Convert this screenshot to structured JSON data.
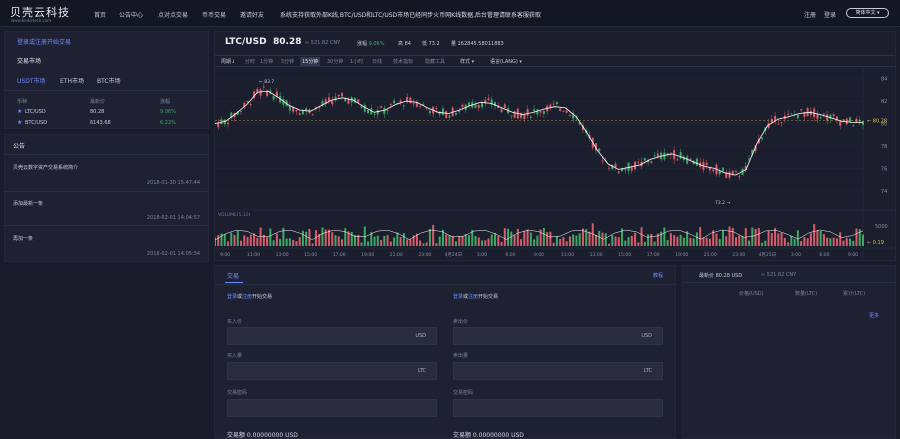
{
  "brand": {
    "title": "贝壳云科技",
    "subtitle": "www.beiketech.com"
  },
  "nav": {
    "items": [
      "首页",
      "公告中心",
      "点对点交易",
      "币币交易",
      "邀请好友"
    ],
    "notice": "系统支持获取外部K线,BTC/USD和LTC/USD市场已经同步火币网K线数据,后台管理请联系客服获取"
  },
  "user": {
    "register": "注册",
    "login": "登录",
    "language": "简体中文"
  },
  "market": {
    "login_prompt": "登录或注册开始交易",
    "section_title": "交易市场",
    "tabs": [
      "USDT市场",
      "ETH市场",
      "BTC市场"
    ],
    "columns": [
      "币种",
      "最新价",
      "涨幅"
    ],
    "rows": [
      {
        "symbol": "LTC/USD",
        "price": "80.28",
        "change": "9.06%"
      },
      {
        "symbol": "BTC/USD",
        "price": "6143.68",
        "change": "6.22%"
      }
    ]
  },
  "announcements": {
    "title": "公告",
    "items": [
      {
        "title": "贝壳云数字资产交易系统简介",
        "date": "2018-01-30 15:47:44"
      },
      {
        "title": "添加最新一条",
        "date": "2018-02-01 14:04:57"
      },
      {
        "title": "再加一条",
        "date": "2018-02-01 14:05:34"
      }
    ]
  },
  "ticker": {
    "pair": "LTC/USD",
    "price": "80.28",
    "cny": "≈ 521.82 CNY",
    "change_label": "涨幅",
    "change": "9.06%",
    "high_label": "高",
    "high": "84",
    "low_label": "低",
    "low": "73.2",
    "volume_label": "量",
    "volume": "162845.58011883"
  },
  "chart_toolbar": {
    "items": [
      "周期↓",
      "分时",
      "1分钟",
      "5分钟",
      "15分钟",
      "30分钟",
      "1小时",
      "日线",
      "技术指标",
      "隐藏工具",
      "样式 ▾",
      "语言(LANG) ▾"
    ],
    "active": "15分钟"
  },
  "chart_data": {
    "type": "line",
    "pair": "LTC/USD",
    "y_ticks": [
      74,
      76,
      78,
      80,
      82,
      84
    ],
    "ylim": [
      73,
      84.6
    ],
    "last_price_label": "80.28",
    "high_marker": "83.7",
    "low_marker": "73.2",
    "volume_title": "VOLUME(5,10)",
    "volume_ticks": [
      "5000"
    ],
    "volume_last_label": "0.19",
    "x_ticks": [
      "9:00",
      "11:00",
      "13:00",
      "15:00",
      "17:00",
      "19:00",
      "21:00",
      "23:00",
      "4月24日",
      "3:00",
      "6:00",
      "9:00",
      "11:00",
      "13:00",
      "15:00",
      "17:00",
      "19:00",
      "21:00",
      "23:00",
      "4月25日",
      "3:00",
      "6:00",
      "9:00"
    ],
    "ma_series": {
      "name": "",
      "values": [
        80.0,
        80.2,
        80.9,
        81.7,
        82.8,
        82.9,
        82.3,
        81.6,
        81.2,
        81.1,
        81.6,
        82.1,
        82.3,
        82.1,
        81.5,
        81.0,
        81.2,
        81.7,
        82.0,
        81.9,
        81.4,
        81.0,
        80.9,
        81.2,
        81.6,
        81.9,
        81.8,
        81.4,
        81.0,
        80.8,
        81.0,
        81.3,
        81.5,
        81.4,
        80.6,
        79.2,
        77.6,
        76.4,
        75.9,
        76.1,
        76.3,
        76.8,
        77.1,
        77.3,
        77.0,
        76.6,
        76.2,
        76.0,
        75.6,
        75.4,
        75.9,
        78.2,
        79.8,
        80.4,
        80.6,
        80.9,
        81.0,
        80.8,
        80.5,
        80.2,
        80.1,
        80.1
      ]
    }
  },
  "trade": {
    "tab": "交易",
    "help": "教程",
    "buy": {
      "login": "登录",
      "or": "或",
      "register": "注册",
      "suffix": "开始交易",
      "price_label": "买入价",
      "price_unit": "USD",
      "amount_label": "买入量",
      "amount_unit": "LTC",
      "pwd_label": "交易密码",
      "total": "交易额 0.00000000 USD"
    },
    "sell": {
      "login": "登录",
      "or": "或",
      "register": "注册",
      "suffix": "开始交易",
      "price_label": "卖出价",
      "price_unit": "USD",
      "amount_label": "卖出量",
      "amount_unit": "LTC",
      "pwd_label": "交易密码",
      "total": "交易额 0.00000000 USD"
    }
  },
  "orderbook": {
    "latest": "最新价 80.28 USD",
    "cny": "≈ 521.82 CNY",
    "columns": [
      "价格(USD)",
      "数量(LTC)",
      "累计(LTC)"
    ],
    "more": "更多"
  },
  "colors": {
    "up": "#3ea866",
    "down": "#d85c69",
    "accent": "#6d8dff",
    "ma": "#ffffff"
  }
}
